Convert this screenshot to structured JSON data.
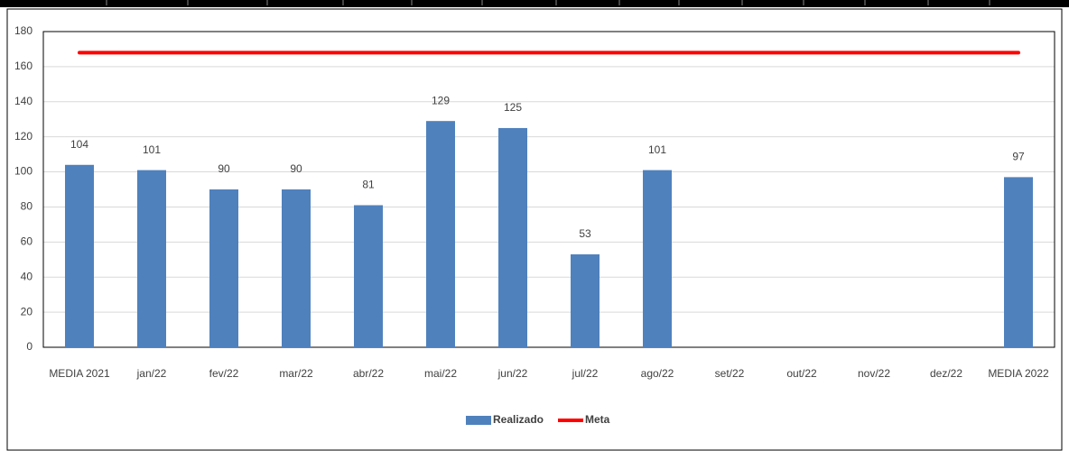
{
  "chart_data": {
    "type": "bar",
    "categories": [
      "MEDIA 2021",
      "jan/22",
      "fev/22",
      "mar/22",
      "abr/22",
      "mai/22",
      "jun/22",
      "jul/22",
      "ago/22",
      "set/22",
      "out/22",
      "nov/22",
      "dez/22",
      "MEDIA 2022"
    ],
    "series": [
      {
        "name": "Realizado",
        "type": "bar",
        "color": "#4f81bd",
        "values": [
          104,
          101,
          90,
          90,
          81,
          129,
          125,
          53,
          101,
          null,
          null,
          null,
          null,
          97
        ]
      },
      {
        "name": "Meta",
        "type": "line",
        "color": "#ff0000",
        "values": [
          168,
          168,
          168,
          168,
          168,
          168,
          168,
          168,
          168,
          168,
          168,
          168,
          168,
          168
        ]
      }
    ],
    "ylim": [
      0,
      180
    ],
    "yticks": [
      0,
      20,
      40,
      60,
      80,
      100,
      120,
      140,
      160,
      180
    ],
    "grid": true,
    "legend": "bottom"
  }
}
